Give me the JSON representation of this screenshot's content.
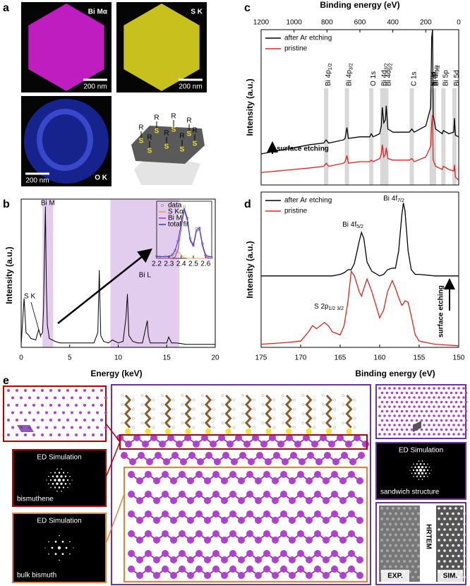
{
  "figure": {
    "panel_labels": [
      "a",
      "b",
      "c",
      "d",
      "e"
    ],
    "maps": [
      {
        "label": "Bi Mα",
        "scale": "200 nm"
      },
      {
        "label": "S K",
        "scale": "200 nm"
      },
      {
        "label": "O K",
        "scale": "200 nm"
      }
    ],
    "schematic": {
      "r": "R",
      "s": "S"
    },
    "structures": {
      "ed_title": "ED Simulation",
      "bismuthene": "bismuthene",
      "bulk": "bulk bismuth",
      "sandwich": "sandwich structure",
      "hrtem": "HRTEM",
      "exp": "EXP.",
      "sim": "SIM."
    }
  },
  "chart_data": [
    {
      "type": "line",
      "xlabel": "Energy (keV)",
      "ylabel": "Intensity (a.u.)",
      "color": "#000000",
      "x": [
        0,
        0.3,
        0.5,
        0.8,
        1.0,
        1.5,
        1.8,
        2.0,
        2.2,
        2.3,
        2.4,
        2.5,
        2.6,
        2.7,
        2.9,
        3.2,
        3.5,
        4,
        5,
        6,
        7,
        7.5,
        7.9,
        8.05,
        8.2,
        8.5,
        9,
        9.4,
        10,
        10.5,
        10.8,
        10.95,
        11.1,
        11.5,
        12,
        12.5,
        13.0,
        13.1,
        13.3,
        14,
        15,
        15.2,
        15.5,
        16,
        17,
        18,
        19,
        20
      ],
      "values": [
        2,
        33,
        10,
        8,
        6,
        5,
        12,
        8,
        10,
        25,
        60,
        95,
        40,
        15,
        6,
        5,
        4,
        3,
        3,
        3,
        3,
        3,
        10,
        52,
        8,
        4,
        3,
        5,
        3,
        4,
        20,
        36,
        8,
        4,
        3,
        3,
        18,
        8,
        3,
        3,
        3,
        7,
        3,
        3,
        2,
        2,
        2,
        2
      ],
      "xlim": [
        0,
        20
      ],
      "xticks": [
        0,
        5,
        10,
        15,
        20
      ],
      "ylim": [
        0,
        100
      ],
      "highlights": [
        {
          "label": "Bi M",
          "from": 2.2,
          "to": 3.3,
          "color": "#dcc0ea"
        },
        {
          "label": "Bi L",
          "from": 9.2,
          "to": 16.3,
          "color": "#dcc0ea"
        }
      ],
      "annotations": [
        "S K"
      ]
    },
    {
      "type": "line",
      "legend": "upper left",
      "x": [
        2.2,
        2.225,
        2.25,
        2.275,
        2.3,
        2.325,
        2.35,
        2.375,
        2.4,
        2.425,
        2.45,
        2.475,
        2.5,
        2.525,
        2.55,
        2.575,
        2.6,
        2.625,
        2.65
      ],
      "xlim": [
        2.2,
        2.65
      ],
      "xticks": [
        2.2,
        2.3,
        2.4,
        2.5,
        2.6
      ],
      "ylim": [
        0,
        100
      ],
      "series": [
        {
          "name": "data",
          "color": "#808080",
          "marker": "circle",
          "values": [
            4,
            3,
            2,
            4,
            3,
            6,
            14,
            30,
            63,
            90,
            70,
            35,
            23,
            52,
            53,
            26,
            5,
            3,
            2
          ]
        },
        {
          "name": "S Kα",
          "color": "#f0a030",
          "values": [
            0,
            0,
            0,
            0,
            0.2,
            2.4,
            8.7,
            11.8,
            5.8,
            1.1,
            0.1,
            0,
            0,
            0,
            0,
            0,
            0,
            0,
            0
          ]
        },
        {
          "name": "Bi M",
          "color": "#b030c0",
          "values": [
            0,
            0,
            0,
            0,
            0,
            0.2,
            2.4,
            16,
            52,
            84,
            68,
            30,
            21,
            47,
            51,
            21,
            3,
            0,
            0
          ]
        },
        {
          "name": "total fit",
          "color": "#1f3fd0",
          "values": [
            3,
            3,
            3,
            3,
            3.2,
            5.6,
            13.5,
            31,
            61,
            88,
            71,
            33,
            24,
            50,
            54,
            24,
            6,
            3,
            3
          ]
        }
      ]
    },
    {
      "type": "line",
      "xlabel": "Binding energy (eV)",
      "ylabel": "Intensity (a.u.)",
      "xaxis": "top",
      "legend": "upper left",
      "x": [
        1200,
        1100,
        1000,
        900,
        820,
        805,
        790,
        700,
        690,
        679,
        670,
        600,
        540,
        531,
        520,
        480,
        470,
        464,
        455,
        445,
        440,
        430,
        400,
        300,
        285,
        270,
        200,
        170,
        164,
        159,
        155,
        140,
        100,
        93,
        60,
        30,
        26,
        20,
        0
      ],
      "xlim": [
        1200,
        0
      ],
      "xticks": [
        1200,
        1000,
        800,
        600,
        400,
        200,
        0
      ],
      "ylim": [
        0,
        100
      ],
      "series": [
        {
          "name": "after Ar etching",
          "color": "#000000",
          "values": [
            20,
            22,
            24,
            26,
            27,
            29,
            27,
            29,
            30,
            37,
            30,
            31,
            31,
            33,
            31,
            33,
            38,
            50,
            40,
            42,
            51,
            36,
            34,
            34,
            36,
            34,
            38,
            50,
            95,
            100,
            45,
            36,
            33,
            35,
            33,
            34,
            43,
            32,
            31
          ]
        },
        {
          "name": "pristine",
          "color": "#e8201a",
          "values": [
            8,
            9,
            10,
            11,
            12,
            14,
            12,
            14,
            15,
            19,
            14,
            15,
            15,
            16,
            15,
            17,
            20,
            26,
            18,
            20,
            24,
            17,
            16,
            16,
            17,
            15,
            18,
            25,
            40,
            45,
            16,
            12,
            10,
            12,
            10,
            9,
            13,
            5,
            3
          ]
        }
      ],
      "peaks": [
        {
          "label": "Bi 4p",
          "sub": "1/2",
          "x": 805
        },
        {
          "label": "Bi 4p",
          "sub": "3/2",
          "x": 679
        },
        {
          "label": "O 1s",
          "x": 531
        },
        {
          "label": "Bi 4d",
          "sub": "3/2",
          "x": 464
        },
        {
          "label": "Bi 4d",
          "sub": "5/2",
          "x": 440
        },
        {
          "label": "C 1s",
          "x": 285
        },
        {
          "label": "S 2p",
          "x": 164
        },
        {
          "label": "Bi 4f",
          "sub": "5/2",
          "x": 159
        },
        {
          "label": "Bi 4f",
          "sub": "7/2",
          "x": 150
        },
        {
          "label": "Bi 5p",
          "x": 93
        },
        {
          "label": "Bi 5d",
          "x": 26
        }
      ],
      "annotations": [
        "surface etching"
      ]
    },
    {
      "type": "line",
      "xlabel": "Binding energy (eV)",
      "ylabel": "Intensity (a.u.)",
      "legend": "upper left",
      "x": [
        175,
        172,
        170,
        169,
        168.5,
        168,
        167.5,
        167,
        166.5,
        166,
        165,
        164.5,
        164,
        163.6,
        163.2,
        162.6,
        162.3,
        162,
        161.6,
        161,
        160,
        159.5,
        159,
        158.4,
        158,
        157.6,
        157.2,
        157,
        156.8,
        156.4,
        156,
        155.5,
        155,
        153,
        150
      ],
      "xlim": [
        175,
        150
      ],
      "xticks": [
        175,
        170,
        165,
        160,
        155,
        150
      ],
      "ylim": [
        0,
        100
      ],
      "series": [
        {
          "name": "after Ar etching",
          "color": "#000000",
          "values": [
            46,
            46,
            46,
            46,
            46,
            46,
            46,
            46,
            46,
            46,
            47,
            48,
            50,
            50,
            54,
            68,
            74,
            70,
            55,
            49,
            46,
            47,
            50,
            51,
            51,
            62,
            85,
            93,
            88,
            62,
            50,
            47,
            47,
            46,
            46
          ]
        },
        {
          "name": "pristine",
          "color": "#e8201a",
          "values": [
            2,
            3,
            4,
            10,
            14,
            12,
            14,
            16,
            14,
            10,
            8,
            14,
            30,
            49,
            46,
            36,
            33,
            38,
            44,
            36,
            19,
            24,
            36,
            43,
            38,
            32,
            27,
            28,
            30,
            29,
            20,
            8,
            4,
            2,
            1
          ]
        }
      ],
      "peak_labels": [
        {
          "label": "Bi 4f",
          "sub": "5/2"
        },
        {
          "label": "Bi 4f",
          "sub": "7/2"
        },
        {
          "label": "S 2p",
          "sub": "1/2 3/2"
        }
      ],
      "annotations": [
        "surface etching"
      ]
    }
  ]
}
